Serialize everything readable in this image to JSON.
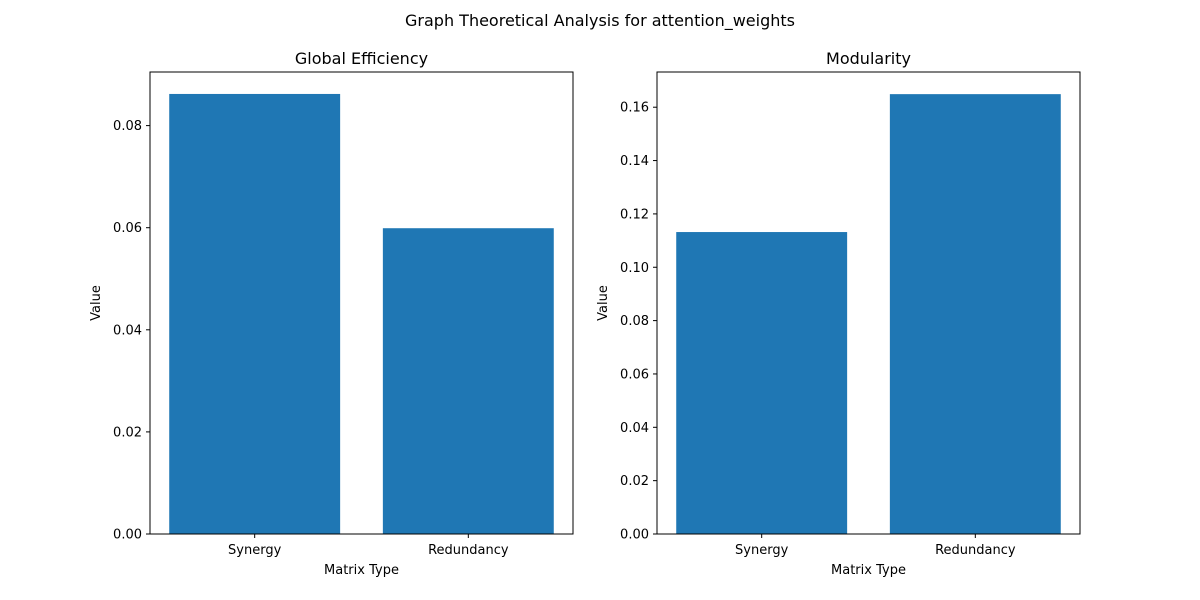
{
  "figure": {
    "suptitle": "Graph Theoretical Analysis for attention_weights"
  },
  "colors": {
    "bar": "#1f77b4",
    "axis": "#000000",
    "background": "#ffffff"
  },
  "chart_data": [
    {
      "type": "bar",
      "title": "Global Efficiency",
      "xlabel": "Matrix Type",
      "ylabel": "Value",
      "categories": [
        "Synergy",
        "Redundancy"
      ],
      "values": [
        0.0862,
        0.0599
      ],
      "ylim": [
        0,
        0.0905
      ],
      "yticks": [
        0.0,
        0.02,
        0.04,
        0.06,
        0.08
      ],
      "ytick_labels": [
        "0.00",
        "0.02",
        "0.04",
        "0.06",
        "0.08"
      ],
      "grid": false,
      "color": "#1f77b4"
    },
    {
      "type": "bar",
      "title": "Modularity",
      "xlabel": "Matrix Type",
      "ylabel": "Value",
      "categories": [
        "Synergy",
        "Redundancy"
      ],
      "values": [
        0.1132,
        0.1649
      ],
      "ylim": [
        0,
        0.1732
      ],
      "yticks": [
        0.0,
        0.02,
        0.04,
        0.06,
        0.08,
        0.1,
        0.12,
        0.14,
        0.16
      ],
      "ytick_labels": [
        "0.00",
        "0.02",
        "0.04",
        "0.06",
        "0.08",
        "0.10",
        "0.12",
        "0.14",
        "0.16"
      ],
      "grid": false,
      "color": "#1f77b4"
    }
  ]
}
